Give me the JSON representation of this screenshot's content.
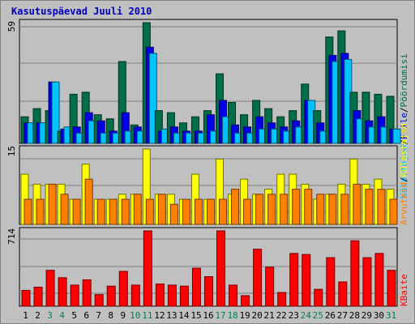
{
  "chart_data": [
    {
      "type": "bar",
      "title": "Kasutuspäevad Juuli 2010",
      "categories": [
        "1",
        "2",
        "3",
        "4",
        "5",
        "6",
        "7",
        "8",
        "9",
        "10",
        "11",
        "12",
        "13",
        "14",
        "15",
        "16",
        "17",
        "18",
        "19",
        "20",
        "21",
        "22",
        "23",
        "24",
        "25",
        "26",
        "27",
        "28",
        "29",
        "30",
        "31"
      ],
      "weekend_days": [
        "3",
        "4",
        "10",
        "11",
        "17",
        "18",
        "24",
        "25",
        "31"
      ],
      "y_tick_label": "59",
      "ylim": [
        0,
        59
      ],
      "series": [
        {
          "name": "Pöördumisi",
          "color": "#006e46",
          "values": [
            13,
            17,
            16,
            6,
            24,
            25,
            14,
            12,
            40,
            9,
            59,
            16,
            15,
            10,
            13,
            16,
            34,
            20,
            14,
            21,
            17,
            13,
            16,
            29,
            16,
            52,
            55,
            25,
            25,
            24,
            23
          ]
        },
        {
          "name": "Faile",
          "color": "#0000e6",
          "values": [
            10,
            10,
            30,
            7,
            8,
            15,
            11,
            6,
            15,
            8,
            47,
            6,
            8,
            6,
            6,
            14,
            21,
            9,
            8,
            13,
            10,
            8,
            11,
            21,
            10,
            43,
            44,
            16,
            11,
            13,
            7
          ]
        },
        {
          "name": "Külastajad",
          "color": "#00c3ff",
          "values": [
            10,
            10,
            30,
            8,
            5,
            11,
            5,
            5,
            6,
            6,
            44,
            7,
            5,
            5,
            5,
            6,
            13,
            5,
            5,
            7,
            7,
            6,
            8,
            21,
            6,
            40,
            41,
            12,
            8,
            8,
            7
          ]
        }
      ],
      "legend_sep": "/"
    },
    {
      "type": "bar",
      "categories": [
        "1",
        "2",
        "3",
        "4",
        "5",
        "6",
        "7",
        "8",
        "9",
        "10",
        "11",
        "12",
        "13",
        "14",
        "15",
        "16",
        "17",
        "18",
        "19",
        "20",
        "21",
        "22",
        "23",
        "24",
        "25",
        "26",
        "27",
        "28",
        "29",
        "30",
        "31"
      ],
      "y_tick_label": "15",
      "ylim": [
        0,
        15
      ],
      "series": [
        {
          "name": "Külastajad",
          "color": "#ffff00",
          "values": [
            10,
            8,
            8,
            8,
            5,
            12,
            5,
            5,
            6,
            6,
            15,
            6,
            6,
            5,
            10,
            5,
            13,
            6,
            9,
            6,
            7,
            10,
            10,
            8,
            5,
            6,
            8,
            13,
            8,
            9,
            7
          ]
        },
        {
          "name": "Arvuteid",
          "color": "#ff8000",
          "values": [
            5,
            5,
            8,
            6,
            5,
            9,
            5,
            5,
            5,
            6,
            5,
            6,
            4,
            5,
            5,
            5,
            5,
            7,
            5,
            6,
            6,
            6,
            7,
            7,
            6,
            6,
            6,
            8,
            7,
            7,
            5
          ]
        }
      ],
      "legend_sep": "/"
    },
    {
      "type": "bar",
      "categories": [
        "1",
        "2",
        "3",
        "4",
        "5",
        "6",
        "7",
        "8",
        "9",
        "10",
        "11",
        "12",
        "13",
        "14",
        "15",
        "16",
        "17",
        "18",
        "19",
        "20",
        "21",
        "22",
        "23",
        "24",
        "25",
        "26",
        "27",
        "28",
        "29",
        "30",
        "31"
      ],
      "y_tick_label": "714",
      "ylim": [
        0,
        714
      ],
      "series": [
        {
          "name": "KBaite",
          "color": "#ff0000",
          "values": [
            150,
            180,
            340,
            270,
            200,
            250,
            110,
            190,
            330,
            200,
            714,
            210,
            200,
            190,
            360,
            280,
            714,
            200,
            100,
            540,
            370,
            130,
            500,
            490,
            160,
            460,
            230,
            620,
            460,
            500,
            340
          ]
        }
      ]
    }
  ],
  "colors": {
    "panel_bg": "#c0c0c0",
    "grid": "#808080",
    "title": "#0000c0",
    "weekend_label": "#00805a",
    "weekday_label": "#000000"
  }
}
